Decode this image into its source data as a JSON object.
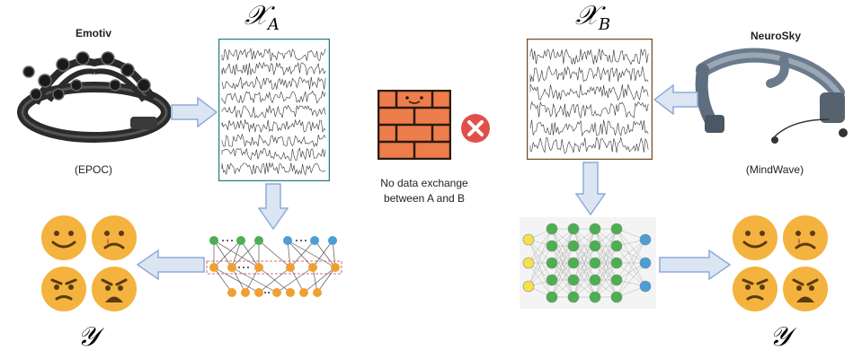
{
  "left": {
    "device_name": "Emotiv",
    "device_model": "(EPOC)",
    "input_symbol": "𝒳",
    "input_sub": "A",
    "output_symbol": "𝒴"
  },
  "right": {
    "device_name": "NeuroSky",
    "device_model": "(MindWave)",
    "input_symbol": "𝒳",
    "input_sub": "B",
    "output_symbol": "𝒴"
  },
  "center": {
    "note_line1": "No data exchange",
    "note_line2": "between A and B"
  },
  "colors": {
    "arrow_fill": "#dce6f2",
    "arrow_stroke": "#8eaadb",
    "eeg_border_left": "#2e7d7d",
    "eeg_border_right": "#7a4a22",
    "brick": "#ee7d4c",
    "block_red": "#e0504a",
    "node_green": "#4caf50",
    "node_blue": "#4a9fd8",
    "node_orange": "#f0a030",
    "node_yellow": "#f5e14a",
    "emoji_face": "#f3b33e"
  }
}
